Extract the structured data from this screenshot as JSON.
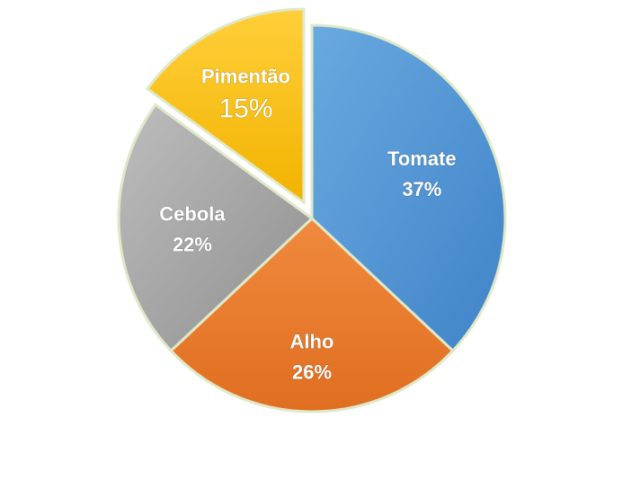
{
  "chart_data": {
    "type": "pie",
    "slices": [
      {
        "label": "Tomate",
        "value": 37,
        "value_label": "37%",
        "color": "#5b9bd5"
      },
      {
        "label": "Alho",
        "value": 26,
        "value_label": "26%",
        "color": "#ed7d31"
      },
      {
        "label": "Cebola",
        "value": 22,
        "value_label": "22%",
        "color": "#a5a5a5"
      },
      {
        "label": "Pimentão",
        "value": 15,
        "value_label": "15%",
        "color": "#ffc000"
      }
    ],
    "exploded": "Pimentão",
    "legend": "none"
  }
}
